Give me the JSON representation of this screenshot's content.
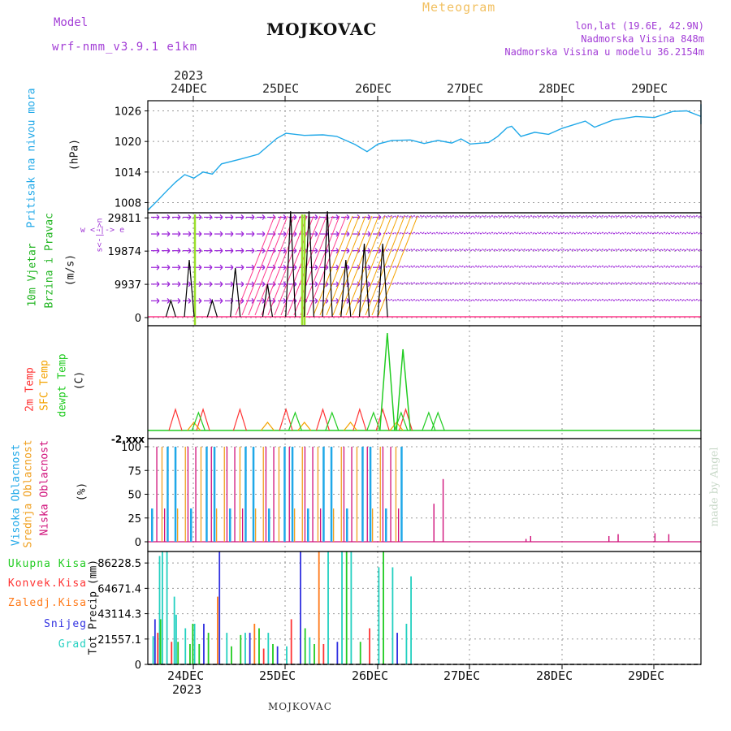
{
  "header": {
    "model_label": "Model",
    "model_name": "wrf-nmm_v3.9.1 e1km",
    "station": "MOJKOVAC",
    "product": "Meteogram",
    "lonlat": "lon,lat (19.6E, 42.9N)",
    "altitude": "Nadmorska Visina 848m",
    "model_altitude": "Nadmorska Visina u modelu 36.2154m",
    "footer_station": "MOJKOVAC",
    "made_by": "made by Angel",
    "year": "2023"
  },
  "colors": {
    "pressure": "#1fa8e8",
    "wind_label": "#22b522",
    "wind_arrow": "#9a1fd8",
    "gust": "#ff3a8c",
    "temp_2m": "#ff3333",
    "temp_sfc": "#f4a300",
    "dewpt": "#22cc22",
    "cloud_high": "#1fa8e8",
    "cloud_mid": "#f0a020",
    "cloud_low": "#d0107a",
    "precip_total": "#22cc22",
    "precip_conv": "#ff3333",
    "precip_frz": "#ff7a1a",
    "precip_snow": "#3030e0",
    "precip_hail": "#22d0c0",
    "header_purple": "#a23cd6",
    "meteogram_label": "#f2c060"
  },
  "chart_data": {
    "type": "meteogram",
    "x_axis": {
      "top_ticks": [
        "24DEC",
        "25DEC",
        "26DEC",
        "27DEC",
        "28DEC",
        "29DEC"
      ],
      "bottom_ticks": [
        "24DEC",
        "25DEC",
        "26DEC",
        "27DEC",
        "28DEC",
        "29DEC"
      ],
      "year": "2023",
      "range_days": [
        0,
        6.2
      ]
    },
    "panels": [
      {
        "id": "pressure",
        "type": "line",
        "labels": [
          "Pritisak na nivou mora",
          "(hPa)"
        ],
        "yticks": [
          "1026",
          "1020",
          "1014",
          "1008"
        ],
        "ylim": [
          1006,
          1028
        ],
        "series": [
          {
            "x": 0,
            "y": 1006.5
          },
          {
            "x": 0.1,
            "y": 1008.3
          },
          {
            "x": 0.2,
            "y": 1010.2
          },
          {
            "x": 0.3,
            "y": 1012.0
          },
          {
            "x": 0.4,
            "y": 1013.5
          },
          {
            "x": 0.5,
            "y": 1012.8
          },
          {
            "x": 0.6,
            "y": 1014.0
          },
          {
            "x": 0.7,
            "y": 1013.6
          },
          {
            "x": 0.8,
            "y": 1015.6
          },
          {
            "x": 1.0,
            "y": 1016.5
          },
          {
            "x": 1.2,
            "y": 1017.5
          },
          {
            "x": 1.4,
            "y": 1020.6
          },
          {
            "x": 1.5,
            "y": 1021.6
          },
          {
            "x": 1.7,
            "y": 1021.2
          },
          {
            "x": 1.9,
            "y": 1021.3
          },
          {
            "x": 2.05,
            "y": 1021.0
          },
          {
            "x": 2.25,
            "y": 1019.4
          },
          {
            "x": 2.38,
            "y": 1018.0
          },
          {
            "x": 2.5,
            "y": 1019.5
          },
          {
            "x": 2.65,
            "y": 1020.2
          },
          {
            "x": 2.85,
            "y": 1020.3
          },
          {
            "x": 3.0,
            "y": 1019.6
          },
          {
            "x": 3.15,
            "y": 1020.2
          },
          {
            "x": 3.3,
            "y": 1019.7
          },
          {
            "x": 3.4,
            "y": 1020.5
          },
          {
            "x": 3.5,
            "y": 1019.5
          },
          {
            "x": 3.7,
            "y": 1019.8
          },
          {
            "x": 3.8,
            "y": 1021.0
          },
          {
            "x": 3.9,
            "y": 1022.7
          },
          {
            "x": 3.95,
            "y": 1023.0
          },
          {
            "x": 4.05,
            "y": 1021.0
          },
          {
            "x": 4.2,
            "y": 1021.8
          },
          {
            "x": 4.35,
            "y": 1021.4
          },
          {
            "x": 4.5,
            "y": 1022.6
          },
          {
            "x": 4.75,
            "y": 1024.0
          },
          {
            "x": 4.85,
            "y": 1022.8
          },
          {
            "x": 5.05,
            "y": 1024.2
          },
          {
            "x": 5.3,
            "y": 1024.9
          },
          {
            "x": 5.5,
            "y": 1024.7
          },
          {
            "x": 5.7,
            "y": 1025.9
          },
          {
            "x": 5.85,
            "y": 1026.0
          },
          {
            "x": 6.05,
            "y": 1024.9
          },
          {
            "x": 6.25,
            "y": 1025.8
          },
          {
            "x": 6.5,
            "y": 1027.2
          },
          {
            "x": 6.7,
            "y": 1027.3
          },
          {
            "x": 6.9,
            "y": 1025.0
          },
          {
            "x": 7.1,
            "y": 1024.7
          },
          {
            "x": 7.3,
            "y": 1023.4
          }
        ]
      },
      {
        "id": "wind",
        "type": "barbs",
        "labels": [
          "10m Vjetar",
          "Brzina i Pravac",
          "(m/s)"
        ],
        "compass": "w <-|-> e",
        "compass_ns": "s<-|->n",
        "yticks": [
          "29811",
          "19874",
          "9937",
          "0"
        ],
        "ylim": [
          0,
          34000
        ],
        "gust_spikes_x": [
          0.25,
          0.45,
          0.7,
          0.95,
          1.3,
          1.55,
          1.75,
          1.95,
          2.15,
          2.35,
          2.55
        ],
        "row_values": [
          0,
          5000,
          10000,
          15000,
          20000,
          25000,
          30000
        ]
      },
      {
        "id": "temperature",
        "type": "line",
        "labels": [
          "2m Temp",
          "SFC Temp",
          "dewpt Temp",
          "(C)"
        ],
        "ytick_overlap": "-2.xxx",
        "spikes_2m_x": [
          0.3,
          0.6,
          1.0,
          1.5,
          1.9,
          2.3,
          2.55,
          2.8
        ],
        "spikes_sfc_x": [
          0.5,
          1.3,
          1.7,
          2.2,
          2.7
        ],
        "spikes_dewpt_x": [
          0.55,
          1.6,
          2.0,
          2.45,
          2.75,
          3.05,
          3.15
        ]
      },
      {
        "id": "clouds",
        "type": "bar",
        "labels": [
          "Visoka Oblacnost",
          "Srednja Oblacnost",
          "Niska Oblacnost",
          "(%)"
        ],
        "yticks": [
          "100",
          "75",
          "50",
          "25",
          "0"
        ],
        "ylim": [
          0,
          100
        ],
        "late_low_x": [
          3.1,
          3.2,
          4.1,
          4.15,
          5.0,
          5.1,
          5.5,
          5.65
        ],
        "late_low_y": [
          40,
          66,
          3,
          6,
          6,
          8,
          9,
          8
        ]
      },
      {
        "id": "precip",
        "type": "bar",
        "legend": [
          "Ukupna Kisa",
          "Konvek.Kisa",
          "Zaledj.Kisa",
          "Snijeg",
          "Grad"
        ],
        "labels": [
          "Tot Precip (mm)"
        ],
        "yticks": [
          "86228.5",
          "64671.4",
          "43114.3",
          "21557.1",
          "0"
        ],
        "ylim": [
          0,
          96000
        ]
      }
    ]
  }
}
